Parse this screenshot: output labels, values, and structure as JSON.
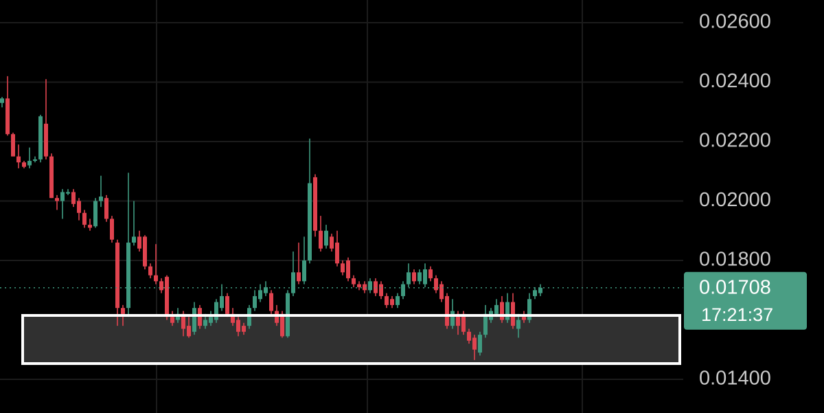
{
  "chart_data": {
    "type": "candlestick",
    "up_color": "#3f9a80",
    "down_color": "#e0434f",
    "ylim": [
      0.012867,
      0.026763
    ],
    "yticks": [
      {
        "value": 0.026,
        "label": "0.02600"
      },
      {
        "value": 0.024,
        "label": "0.02400"
      },
      {
        "value": 0.022,
        "label": "0.02200"
      },
      {
        "value": 0.02,
        "label": "0.02000"
      },
      {
        "value": 0.018,
        "label": "0.01800"
      },
      {
        "value": 0.014,
        "label": "0.01400"
      }
    ],
    "grid": true,
    "last_price": 0.01708,
    "countdown": "17:21:37",
    "highlight_zone": {
      "low": 0.01453,
      "high": 0.01615
    },
    "candles": [
      [
        0.0233,
        0.0235,
        0.02315,
        0.02345
      ],
      [
        0.02345,
        0.0242,
        0.0222,
        0.02225
      ],
      [
        0.02225,
        0.0223,
        0.0215,
        0.0215
      ],
      [
        0.0215,
        0.0219,
        0.0211,
        0.0213
      ],
      [
        0.0213,
        0.02135,
        0.0211,
        0.02115
      ],
      [
        0.0212,
        0.0218,
        0.0211,
        0.02135
      ],
      [
        0.02135,
        0.0215,
        0.0213,
        0.0214
      ],
      [
        0.0214,
        0.0229,
        0.0213,
        0.02285
      ],
      [
        0.0226,
        0.0241,
        0.0214,
        0.0215
      ],
      [
        0.0215,
        0.0216,
        0.0201,
        0.0201
      ],
      [
        0.0201,
        0.0202,
        0.0197,
        0.02
      ],
      [
        0.02,
        0.0204,
        0.0194,
        0.0203
      ],
      [
        0.02025,
        0.0204,
        0.0202,
        0.0203
      ],
      [
        0.0203,
        0.0204,
        0.0198,
        0.0199
      ],
      [
        0.02,
        0.0201,
        0.01935,
        0.0196
      ],
      [
        0.0196,
        0.0197,
        0.0191,
        0.0192
      ],
      [
        0.0192,
        0.0194,
        0.019,
        0.0191
      ],
      [
        0.01915,
        0.0201,
        0.0191,
        0.02
      ],
      [
        0.02,
        0.02085,
        0.0198,
        0.02015
      ],
      [
        0.0201,
        0.0202,
        0.0193,
        0.0194
      ],
      [
        0.0194,
        0.0195,
        0.0186,
        0.0187
      ],
      [
        0.0186,
        0.0187,
        0.0158,
        0.0164
      ],
      [
        0.0164,
        0.0165,
        0.0158,
        0.0162
      ],
      [
        0.0164,
        0.02095,
        0.0161,
        0.0186
      ],
      [
        0.0186,
        0.02,
        0.0185,
        0.0188
      ],
      [
        0.0188,
        0.019,
        0.0183,
        0.0184
      ],
      [
        0.0188,
        0.01885,
        0.0177,
        0.0178
      ],
      [
        0.0178,
        0.0179,
        0.0174,
        0.0175
      ],
      [
        0.0175,
        0.01855,
        0.0172,
        0.0173
      ],
      [
        0.0173,
        0.0174,
        0.0169,
        0.017
      ],
      [
        0.01745,
        0.0175,
        0.016,
        0.0161
      ],
      [
        0.0161,
        0.0163,
        0.0158,
        0.0159
      ],
      [
        0.016,
        0.0164,
        0.0159,
        0.0162
      ],
      [
        0.0162,
        0.0163,
        0.01545,
        0.0157
      ],
      [
        0.0158,
        0.0161,
        0.0154,
        0.01545
      ],
      [
        0.0156,
        0.0166,
        0.0155,
        0.0164
      ],
      [
        0.0164,
        0.0165,
        0.0157,
        0.0158
      ],
      [
        0.0158,
        0.0162,
        0.0157,
        0.016
      ],
      [
        0.0159,
        0.0163,
        0.0158,
        0.0161
      ],
      [
        0.016,
        0.0167,
        0.0159,
        0.0166
      ],
      [
        0.0164,
        0.0172,
        0.0163,
        0.0168
      ],
      [
        0.0168,
        0.0169,
        0.0161,
        0.0162
      ],
      [
        0.0162,
        0.0164,
        0.0158,
        0.0159
      ],
      [
        0.016,
        0.0161,
        0.01545,
        0.0156
      ],
      [
        0.0158,
        0.0159,
        0.0155,
        0.0156
      ],
      [
        0.0158,
        0.0165,
        0.0157,
        0.0164
      ],
      [
        0.0164,
        0.017,
        0.0163,
        0.0168
      ],
      [
        0.0167,
        0.0172,
        0.0166,
        0.017
      ],
      [
        0.0169,
        0.0173,
        0.0168,
        0.0171
      ],
      [
        0.0169,
        0.017,
        0.0162,
        0.0163
      ],
      [
        0.0163,
        0.0165,
        0.0158,
        0.0159
      ],
      [
        0.0162,
        0.0163,
        0.0154,
        0.01545
      ],
      [
        0.01545,
        0.017,
        0.0154,
        0.0169
      ],
      [
        0.0169,
        0.0183,
        0.0168,
        0.0176
      ],
      [
        0.0176,
        0.0186,
        0.0172,
        0.0173
      ],
      [
        0.0173,
        0.0188,
        0.0172,
        0.018
      ],
      [
        0.018,
        0.0221,
        0.0179,
        0.0206
      ],
      [
        0.0208,
        0.0209,
        0.0188,
        0.019
      ],
      [
        0.019,
        0.0195,
        0.0183,
        0.0184
      ],
      [
        0.0185,
        0.0192,
        0.0184,
        0.019
      ],
      [
        0.0188,
        0.0189,
        0.0183,
        0.0184
      ],
      [
        0.0186,
        0.019,
        0.0178,
        0.0179
      ],
      [
        0.0179,
        0.018,
        0.0175,
        0.0176
      ],
      [
        0.018,
        0.0181,
        0.0173,
        0.0174
      ],
      [
        0.0174,
        0.0175,
        0.0171,
        0.0172
      ],
      [
        0.0172,
        0.0173,
        0.017,
        0.0171
      ],
      [
        0.0172,
        0.0173,
        0.0169,
        0.017
      ],
      [
        0.017,
        0.0174,
        0.0169,
        0.0173
      ],
      [
        0.0173,
        0.0174,
        0.0168,
        0.0169
      ],
      [
        0.0172,
        0.0173,
        0.0167,
        0.0168
      ],
      [
        0.0168,
        0.0169,
        0.0164,
        0.0165
      ],
      [
        0.0167,
        0.0168,
        0.0164,
        0.0165
      ],
      [
        0.0165,
        0.0169,
        0.0164,
        0.0168
      ],
      [
        0.0168,
        0.0173,
        0.0167,
        0.0172
      ],
      [
        0.0172,
        0.0179,
        0.0171,
        0.0176
      ],
      [
        0.0176,
        0.0177,
        0.0172,
        0.0173
      ],
      [
        0.0173,
        0.0177,
        0.0172,
        0.0176
      ],
      [
        0.0172,
        0.0179,
        0.0171,
        0.0177
      ],
      [
        0.0177,
        0.0178,
        0.0173,
        0.0174
      ],
      [
        0.0174,
        0.0175,
        0.0169,
        0.017
      ],
      [
        0.0172,
        0.0173,
        0.0166,
        0.0167
      ],
      [
        0.0168,
        0.0169,
        0.0157,
        0.0158
      ],
      [
        0.0158,
        0.0167,
        0.0157,
        0.0163
      ],
      [
        0.0162,
        0.0163,
        0.0155,
        0.0158
      ],
      [
        0.0162,
        0.0163,
        0.0155,
        0.0156
      ],
      [
        0.0156,
        0.0157,
        0.0152,
        0.0153
      ],
      [
        0.0154,
        0.0155,
        0.01465,
        0.015
      ],
      [
        0.0149,
        0.0156,
        0.0148,
        0.0155
      ],
      [
        0.0155,
        0.0165,
        0.0154,
        0.0162
      ],
      [
        0.016,
        0.0164,
        0.0159,
        0.0163
      ],
      [
        0.0162,
        0.0167,
        0.0161,
        0.0165
      ],
      [
        0.0166,
        0.0168,
        0.0159,
        0.016
      ],
      [
        0.016,
        0.0169,
        0.0159,
        0.0166
      ],
      [
        0.0166,
        0.0169,
        0.0157,
        0.0158
      ],
      [
        0.0157,
        0.0162,
        0.0154,
        0.016
      ],
      [
        0.0161,
        0.0163,
        0.0159,
        0.016
      ],
      [
        0.016,
        0.0169,
        0.0159,
        0.0167
      ],
      [
        0.0168,
        0.0171,
        0.0167,
        0.017
      ],
      [
        0.0169,
        0.0172,
        0.0168,
        0.01708
      ]
    ]
  }
}
